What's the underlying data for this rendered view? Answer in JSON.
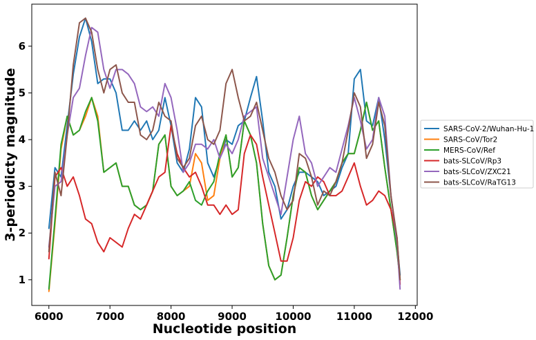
{
  "chart_data": {
    "type": "line",
    "title": "",
    "xlabel": "Nucleotide position",
    "ylabel": "3-periodicty magnitude",
    "xlim": [
      5720,
      12030
    ],
    "ylim": [
      0.45,
      6.9
    ],
    "xticks": [
      6000,
      7000,
      8000,
      9000,
      10000,
      11000,
      12000
    ],
    "yticks": [
      1,
      2,
      3,
      4,
      5,
      6
    ],
    "grid": false,
    "legend": "center-right-outside",
    "series": [
      {
        "name": "SARS-CoV-2/Wuhan-Hu-1",
        "color": "#1f77b4",
        "x": [
          6000,
          6100,
          6200,
          6300,
          6400,
          6500,
          6600,
          6700,
          6800,
          6900,
          7000,
          7100,
          7200,
          7300,
          7400,
          7500,
          7600,
          7700,
          7800,
          7900,
          8000,
          8100,
          8200,
          8300,
          8400,
          8500,
          8600,
          8700,
          8800,
          8900,
          9000,
          9100,
          9200,
          9300,
          9400,
          9500,
          9600,
          9700,
          9800,
          9900,
          10000,
          10100,
          10200,
          10300,
          10400,
          10500,
          10600,
          10700,
          10800,
          10900,
          11000,
          11100,
          11200,
          11300,
          11400,
          11500,
          11600,
          11700,
          11750
        ],
        "y": [
          2.1,
          3.4,
          3.2,
          4.3,
          5.4,
          6.2,
          6.6,
          6.1,
          5.2,
          5.3,
          5.3,
          5.0,
          4.2,
          4.2,
          4.4,
          4.2,
          4.4,
          4.0,
          4.2,
          4.9,
          4.3,
          3.5,
          3.3,
          3.8,
          4.9,
          4.7,
          3.5,
          3.2,
          3.6,
          4.0,
          3.9,
          4.3,
          4.4,
          4.9,
          5.35,
          4.4,
          3.3,
          3.0,
          2.3,
          2.5,
          3.0,
          3.3,
          3.3,
          3.2,
          3.1,
          2.8,
          2.9,
          3.0,
          3.4,
          3.7,
          5.3,
          5.5,
          4.4,
          4.3,
          4.9,
          4.0,
          2.8,
          1.8,
          1.1
        ]
      },
      {
        "name": "SARS-CoV/Tor2",
        "color": "#ff7f0e",
        "x": [
          6000,
          6100,
          6200,
          6300,
          6400,
          6500,
          6600,
          6700,
          6800,
          6900,
          7000,
          7100,
          7200,
          7300,
          7400,
          7500,
          7600,
          7700,
          7800,
          7900,
          8000,
          8100,
          8200,
          8300,
          8400,
          8500,
          8600,
          8700,
          8800,
          8900,
          9000,
          9100,
          9200,
          9300,
          9400,
          9500,
          9600,
          9700,
          9800,
          9900,
          10000,
          10100,
          10200,
          10300,
          10400,
          10500,
          10600,
          10700,
          10800,
          10900,
          11000,
          11100,
          11200,
          11300,
          11400,
          11500,
          11600,
          11700,
          11750
        ],
        "y": [
          0.75,
          2.2,
          3.8,
          4.5,
          4.1,
          4.2,
          4.5,
          4.9,
          4.5,
          3.3,
          3.4,
          3.5,
          3.0,
          3.0,
          2.6,
          2.5,
          2.6,
          2.9,
          3.9,
          4.1,
          3.0,
          2.8,
          2.9,
          3.0,
          3.7,
          3.5,
          2.7,
          2.8,
          3.6,
          4.1,
          3.2,
          3.4,
          4.4,
          4.1,
          3.5,
          2.2,
          1.3,
          1.0,
          1.1,
          1.9,
          2.8,
          3.4,
          3.3,
          2.8,
          2.5,
          2.7,
          2.9,
          3.1,
          3.5,
          3.7,
          3.7,
          4.2,
          4.8,
          4.2,
          4.4,
          3.4,
          2.5,
          1.6,
          1.0
        ]
      },
      {
        "name": "MERS-CoV/Ref",
        "color": "#2ca02c",
        "x": [
          6000,
          6100,
          6200,
          6300,
          6400,
          6500,
          6600,
          6700,
          6800,
          6900,
          7000,
          7100,
          7200,
          7300,
          7400,
          7500,
          7600,
          7700,
          7800,
          7900,
          8000,
          8100,
          8200,
          8300,
          8400,
          8500,
          8600,
          8700,
          8800,
          8900,
          9000,
          9100,
          9200,
          9300,
          9400,
          9500,
          9600,
          9700,
          9800,
          9900,
          10000,
          10100,
          10200,
          10300,
          10400,
          10500,
          10600,
          10700,
          10800,
          10900,
          11000,
          11100,
          11200,
          11300,
          11400,
          11500,
          11600,
          11700,
          11750
        ],
        "y": [
          0.8,
          2.3,
          3.9,
          4.5,
          4.1,
          4.2,
          4.6,
          4.9,
          4.4,
          3.3,
          3.4,
          3.5,
          3.0,
          3.0,
          2.6,
          2.5,
          2.6,
          2.9,
          3.9,
          4.1,
          3.0,
          2.8,
          2.9,
          3.1,
          2.7,
          2.6,
          2.9,
          3.1,
          3.7,
          4.1,
          3.2,
          3.4,
          4.4,
          4.1,
          3.5,
          2.2,
          1.3,
          1.0,
          1.1,
          1.9,
          2.8,
          3.4,
          3.3,
          2.8,
          2.5,
          2.7,
          2.9,
          3.1,
          3.5,
          3.7,
          3.7,
          4.2,
          4.8,
          4.2,
          4.4,
          3.4,
          2.5,
          1.6,
          1.0
        ]
      },
      {
        "name": "bats-SLCoV/Rp3",
        "color": "#d62728",
        "x": [
          6000,
          6100,
          6200,
          6300,
          6400,
          6500,
          6600,
          6700,
          6800,
          6900,
          7000,
          7100,
          7200,
          7300,
          7400,
          7500,
          7600,
          7700,
          7800,
          7900,
          8000,
          8100,
          8200,
          8300,
          8400,
          8500,
          8600,
          8700,
          8800,
          8900,
          9000,
          9100,
          9200,
          9300,
          9400,
          9500,
          9600,
          9700,
          9800,
          9900,
          10000,
          10100,
          10200,
          10300,
          10400,
          10500,
          10600,
          10700,
          10800,
          10900,
          11000,
          11100,
          11200,
          11300,
          11400,
          11500,
          11600,
          11700,
          11750
        ],
        "y": [
          1.45,
          3.2,
          3.4,
          3.0,
          3.2,
          2.8,
          2.3,
          2.2,
          1.8,
          1.6,
          1.9,
          1.8,
          1.7,
          2.1,
          2.4,
          2.3,
          2.6,
          2.9,
          3.2,
          3.3,
          4.3,
          3.7,
          3.4,
          3.2,
          3.3,
          3.0,
          2.6,
          2.6,
          2.4,
          2.6,
          2.4,
          2.5,
          3.7,
          4.1,
          3.9,
          3.2,
          2.6,
          2.0,
          1.4,
          1.4,
          1.9,
          2.7,
          3.1,
          3.0,
          3.2,
          3.1,
          2.8,
          2.8,
          2.9,
          3.2,
          3.5,
          3.0,
          2.6,
          2.7,
          2.9,
          2.8,
          2.5,
          1.9,
          0.9
        ]
      },
      {
        "name": "bats-SLCoV/ZXC21",
        "color": "#9467bd",
        "x": [
          6000,
          6100,
          6200,
          6300,
          6400,
          6500,
          6600,
          6700,
          6800,
          6900,
          7000,
          7100,
          7200,
          7300,
          7400,
          7500,
          7600,
          7700,
          7800,
          7900,
          8000,
          8100,
          8200,
          8300,
          8400,
          8500,
          8600,
          8700,
          8800,
          8900,
          9000,
          9100,
          9200,
          9300,
          9400,
          9500,
          9600,
          9700,
          9800,
          9900,
          10000,
          10100,
          10200,
          10300,
          10400,
          10500,
          10600,
          10700,
          10800,
          10900,
          11000,
          11100,
          11200,
          11300,
          11400,
          11500,
          11600,
          11700,
          11750
        ],
        "y": [
          1.7,
          3.0,
          3.1,
          4.1,
          4.9,
          5.1,
          5.8,
          6.4,
          6.3,
          5.5,
          5.1,
          5.5,
          5.5,
          5.4,
          5.2,
          4.7,
          4.6,
          4.7,
          4.5,
          5.2,
          4.9,
          4.2,
          3.3,
          3.5,
          3.9,
          3.9,
          3.8,
          4.0,
          3.6,
          3.9,
          3.7,
          4.0,
          4.5,
          4.6,
          4.7,
          3.6,
          3.2,
          2.8,
          2.4,
          3.2,
          4.0,
          4.5,
          3.7,
          3.5,
          3.0,
          3.2,
          3.4,
          3.3,
          3.8,
          4.3,
          4.9,
          4.4,
          3.8,
          4.0,
          4.9,
          4.5,
          2.8,
          1.8,
          0.8
        ]
      },
      {
        "name": "bats-SLCoV/RaTG13",
        "color": "#8c564b",
        "x": [
          6000,
          6100,
          6200,
          6300,
          6400,
          6500,
          6600,
          6700,
          6800,
          6900,
          7000,
          7100,
          7200,
          7300,
          7400,
          7500,
          7600,
          7700,
          7800,
          7900,
          8000,
          8100,
          8200,
          8300,
          8400,
          8500,
          8600,
          8700,
          8800,
          8900,
          9000,
          9100,
          9200,
          9300,
          9400,
          9500,
          9600,
          9700,
          9800,
          9900,
          10000,
          10100,
          10200,
          10300,
          10400,
          10500,
          10600,
          10700,
          10800,
          10900,
          11000,
          11100,
          11200,
          11300,
          11400,
          11500,
          11600,
          11700,
          11750
        ],
        "y": [
          1.6,
          3.3,
          2.8,
          4.1,
          5.6,
          6.5,
          6.6,
          6.3,
          5.5,
          5.0,
          5.5,
          5.6,
          5.0,
          4.8,
          4.8,
          4.1,
          4.0,
          4.2,
          4.8,
          4.5,
          4.4,
          3.6,
          3.4,
          3.6,
          4.3,
          4.5,
          4.0,
          3.9,
          4.2,
          5.2,
          5.5,
          4.9,
          4.4,
          4.5,
          4.8,
          4.2,
          3.6,
          3.3,
          2.8,
          2.5,
          2.7,
          3.7,
          3.6,
          3.2,
          2.6,
          2.9,
          2.8,
          3.1,
          3.5,
          4.2,
          5.0,
          4.7,
          3.6,
          3.9,
          4.8,
          4.3,
          2.8,
          1.9,
          1.0
        ]
      }
    ]
  }
}
